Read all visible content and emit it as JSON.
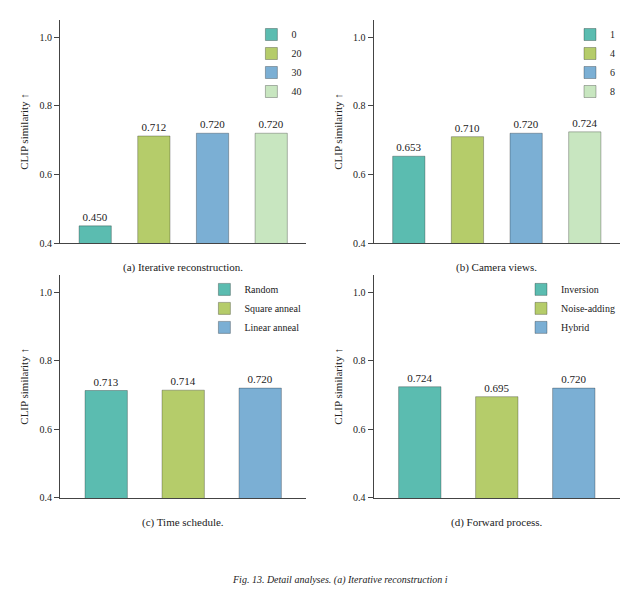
{
  "chart_data": [
    {
      "type": "bar",
      "title": "(a) Iterative reconstruction.",
      "categories": [
        "0",
        "20",
        "30",
        "40"
      ],
      "values": [
        0.45,
        0.712,
        0.72,
        0.72
      ],
      "value_labels": [
        "0.450",
        "0.712",
        "0.720",
        "0.720"
      ],
      "colors": [
        "#5bbcb0",
        "#b5cc6a",
        "#7bafd4",
        "#c8e6c0"
      ],
      "ylabel": "CLIP similarity ↑",
      "ylim": [
        0.4,
        1.05
      ],
      "yticks": [
        0.4,
        0.6,
        0.8,
        {
          "value": 1.0,
          "label": "1.0"
        }
      ],
      "data_labels": true,
      "legend": "upper right",
      "grid": false,
      "tick_labels": "y"
    },
    {
      "type": "bar",
      "title": "(b) Camera views.",
      "categories": [
        "1",
        "4",
        "6",
        "8"
      ],
      "values": [
        0.653,
        0.71,
        0.72,
        0.724
      ],
      "value_labels": [
        "0.653",
        "0.710",
        "0.720",
        "0.724"
      ],
      "colors": [
        "#5bbcb0",
        "#b5cc6a",
        "#7bafd4",
        "#c8e6c0"
      ],
      "ylabel": "CLIP similarity ↑",
      "ylim": [
        0.4,
        1.05
      ],
      "yticks": [
        0.4,
        0.6,
        0.8,
        {
          "value": 1.0,
          "label": "1.0"
        }
      ],
      "data_labels": true,
      "legend": "upper right",
      "grid": false,
      "tick_labels": "y"
    },
    {
      "type": "bar",
      "title": "(c) Time schedule.",
      "categories": [
        "Random",
        "Square anneal",
        "Linear anneal"
      ],
      "values": [
        0.713,
        0.714,
        0.72
      ],
      "value_labels": [
        "0.713",
        "0.714",
        "0.720"
      ],
      "colors": [
        "#5bbcb0",
        "#b5cc6a",
        "#7bafd4"
      ],
      "ylabel": "CLIP similarity ↑",
      "ylim": [
        0.4,
        1.05
      ],
      "yticks": [
        0.4,
        0.6,
        0.8,
        {
          "value": 1.0,
          "label": "1.0"
        }
      ],
      "data_labels": true,
      "legend": "upper right",
      "grid": false,
      "tick_labels": "y"
    },
    {
      "type": "bar",
      "title": "(d) Forward process.",
      "categories": [
        "Inversion",
        "Noise-adding",
        "Hybrid"
      ],
      "values": [
        0.724,
        0.695,
        0.72
      ],
      "value_labels": [
        "0.724",
        "0.695",
        "0.720"
      ],
      "colors": [
        "#5bbcb0",
        "#b5cc6a",
        "#7bafd4"
      ],
      "ylabel": "CLIP similarity ↑",
      "ylim": [
        0.4,
        1.05
      ],
      "yticks": [
        0.4,
        0.6,
        0.8,
        {
          "value": 1.0,
          "label": "1.0"
        }
      ],
      "data_labels": true,
      "legend": "upper right",
      "grid": false,
      "tick_labels": "y"
    }
  ],
  "caption": "Fig. 13. Detail analyses. (a) Iterative reconstruction i"
}
